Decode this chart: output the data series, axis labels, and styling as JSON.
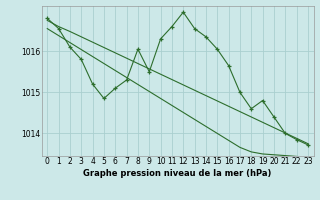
{
  "title": "Graphe pression niveau de la mer (hPa)",
  "background_color": "#cce8e8",
  "grid_color": "#aacfcf",
  "line_color": "#2d6e2d",
  "x_ticks": [
    0,
    1,
    2,
    3,
    4,
    5,
    6,
    7,
    8,
    9,
    10,
    11,
    12,
    13,
    14,
    15,
    16,
    17,
    18,
    19,
    20,
    21,
    22,
    23
  ],
  "y_ticks": [
    1014,
    1015,
    1016
  ],
  "ylim": [
    1013.45,
    1017.1
  ],
  "xlim": [
    -0.5,
    23.5
  ],
  "jagged": [
    1016.8,
    1016.55,
    1016.1,
    1015.8,
    1015.2,
    1014.85,
    1015.1,
    1015.3,
    1016.05,
    1015.5,
    1016.3,
    1016.6,
    1016.95,
    1016.55,
    1016.35,
    1016.05,
    1015.65,
    1015.0,
    1014.6,
    1014.8,
    1014.4,
    1014.0,
    1013.85,
    1013.72
  ],
  "straight1": [
    1016.75,
    1016.6,
    1016.48,
    1016.35,
    1016.22,
    1016.09,
    1015.96,
    1015.83,
    1015.7,
    1015.57,
    1015.44,
    1015.31,
    1015.18,
    1015.05,
    1014.92,
    1014.79,
    1014.66,
    1014.53,
    1014.4,
    1014.27,
    1014.14,
    1014.01,
    1013.88,
    1013.75
  ],
  "straight2": [
    1016.55,
    1016.38,
    1016.21,
    1016.04,
    1015.87,
    1015.7,
    1015.53,
    1015.36,
    1015.19,
    1015.02,
    1014.85,
    1014.68,
    1014.51,
    1014.34,
    1014.17,
    1014.0,
    1013.83,
    1013.66,
    1013.55,
    1013.5,
    1013.48,
    1013.46,
    1013.44,
    1013.42
  ],
  "title_fontsize": 6.0,
  "tick_fontsize": 5.5
}
